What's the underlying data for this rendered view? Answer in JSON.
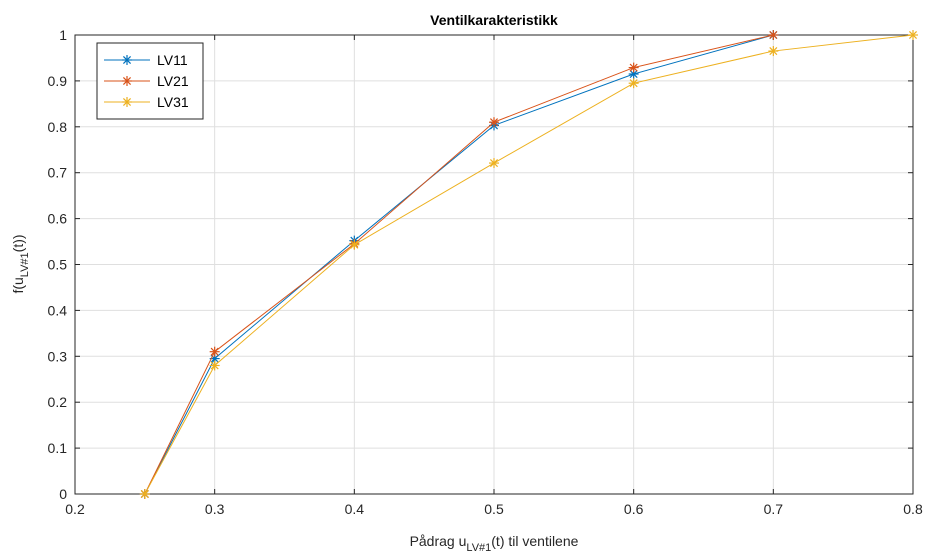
{
  "chart_data": {
    "type": "line",
    "title": "Ventilkarakteristikk",
    "xlabel": {
      "main": "Pådrag u",
      "sub": "LV#1",
      "suffix": "(t) til ventilene"
    },
    "ylabel": {
      "main": "f(u",
      "sub": "LV#1",
      "suffix": "(t))"
    },
    "xlim": [
      0.2,
      0.8
    ],
    "ylim": [
      0,
      1
    ],
    "xticks": [
      "0.2",
      "0.3",
      "0.4",
      "0.5",
      "0.6",
      "0.7",
      "0.8"
    ],
    "yticks": [
      "0",
      "0.1",
      "0.2",
      "0.3",
      "0.4",
      "0.5",
      "0.6",
      "0.7",
      "0.8",
      "0.9",
      "1"
    ],
    "grid": true,
    "legend_position": "top-left",
    "marker": "asterisk",
    "series": [
      {
        "name": "LV11",
        "color": "#0072BD",
        "x": [
          0.25,
          0.3,
          0.4,
          0.5,
          0.6,
          0.7
        ],
        "y": [
          0,
          0.295,
          0.552,
          0.803,
          0.915,
          1
        ]
      },
      {
        "name": "LV21",
        "color": "#D95319",
        "x": [
          0.25,
          0.3,
          0.4,
          0.5,
          0.6,
          0.7
        ],
        "y": [
          0,
          0.31,
          0.545,
          0.81,
          0.929,
          1
        ]
      },
      {
        "name": "LV31",
        "color": "#EDB120",
        "x": [
          0.25,
          0.3,
          0.4,
          0.5,
          0.6,
          0.7,
          0.8
        ],
        "y": [
          0,
          0.28,
          0.543,
          0.721,
          0.895,
          0.965,
          1
        ]
      }
    ]
  }
}
